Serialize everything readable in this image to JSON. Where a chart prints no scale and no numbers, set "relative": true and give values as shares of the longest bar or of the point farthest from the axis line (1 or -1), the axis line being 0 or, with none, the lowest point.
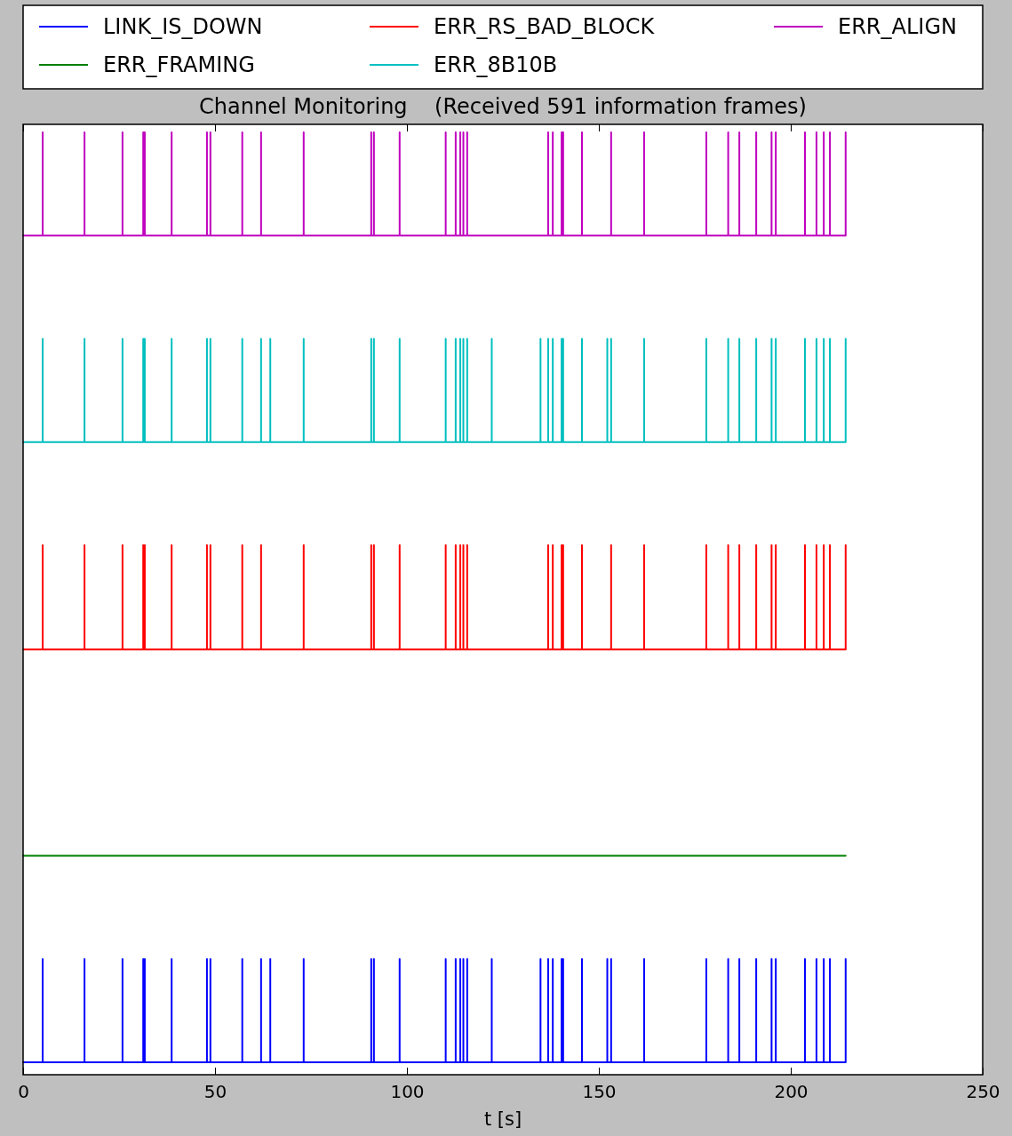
{
  "chart_data": {
    "type": "line",
    "title": "Channel Monitoring    (Received 591 information frames)",
    "xlabel": "t [s]",
    "relative": true,
    "tick_labels": "x",
    "legend": "top",
    "line_style": "solid",
    "xlim": [
      0,
      250
    ],
    "xticks": [
      0,
      50,
      100,
      150,
      200,
      250
    ],
    "series": [
      {
        "name": "LINK_IS_DOWN",
        "color": "#0000ff",
        "x": [
          0,
          5.1,
          5.1,
          5.1,
          16.0,
          16.0,
          16.0,
          25.9,
          25.9,
          25.9,
          31.3,
          31.3,
          31.3,
          31.7,
          31.7,
          31.7,
          38.7,
          38.7,
          38.7,
          47.9,
          47.9,
          47.9,
          48.8,
          48.8,
          48.8,
          57.1,
          57.1,
          57.1,
          62.0,
          62.0,
          62.0,
          64.4,
          64.4,
          64.4,
          73.1,
          73.1,
          73.1,
          90.7,
          90.7,
          90.7,
          91.4,
          91.4,
          91.4,
          98.1,
          98.1,
          98.1,
          110.1,
          110.1,
          110.1,
          112.7,
          112.7,
          112.7,
          113.9,
          113.9,
          113.9,
          114.7,
          114.7,
          114.7,
          115.7,
          115.7,
          115.7,
          122.1,
          122.1,
          122.1,
          134.8,
          134.8,
          134.8,
          136.8,
          136.8,
          136.8,
          138.0,
          138.0,
          138.0,
          140.3,
          140.3,
          140.3,
          140.7,
          140.7,
          140.7,
          145.6,
          145.6,
          145.6,
          152.2,
          152.2,
          152.2,
          153.2,
          153.2,
          153.2,
          161.8,
          161.8,
          161.8,
          178.0,
          178.0,
          178.0,
          183.7,
          183.7,
          183.7,
          186.6,
          186.6,
          186.6,
          191.0,
          191.0,
          191.0,
          195.0,
          195.0,
          195.0,
          196.1,
          196.1,
          196.1,
          203.7,
          203.7,
          203.7,
          206.7,
          206.7,
          206.7,
          208.6,
          208.6,
          208.6,
          210.2,
          210.2,
          210.2,
          214.3,
          214.3,
          214.3
        ],
        "values": [
          0,
          0,
          0.111,
          0,
          0,
          0.111,
          0,
          0,
          0.111,
          0,
          0,
          0.111,
          0,
          0,
          0.111,
          0,
          0,
          0.111,
          0,
          0,
          0.111,
          0,
          0,
          0.111,
          0,
          0,
          0.111,
          0,
          0,
          0.111,
          0,
          0,
          0.111,
          0,
          0,
          0.111,
          0,
          0,
          0.111,
          0,
          0,
          0.111,
          0,
          0,
          0.111,
          0,
          0,
          0.111,
          0,
          0,
          0.111,
          0,
          0,
          0.111,
          0,
          0,
          0.111,
          0,
          0,
          0.111,
          0,
          0,
          0.111,
          0,
          0,
          0.111,
          0,
          0,
          0.111,
          0,
          0,
          0.111,
          0,
          0,
          0.111,
          0,
          0,
          0.111,
          0,
          0,
          0.111,
          0,
          0,
          0.111,
          0,
          0,
          0.111,
          0,
          0,
          0.111,
          0,
          0,
          0.111,
          0,
          0,
          0.111,
          0,
          0,
          0.111,
          0,
          0,
          0.111,
          0,
          0,
          0.111,
          0,
          0,
          0.111,
          0,
          0,
          0.111,
          0,
          0,
          0.111,
          0,
          0,
          0.111,
          0,
          0,
          0.111,
          0,
          0,
          0.111,
          0
        ]
      },
      {
        "name": "ERR_FRAMING",
        "color": "#008000",
        "x": [
          0,
          214.3
        ],
        "values": [
          0.222,
          0.222
        ]
      },
      {
        "name": "ERR_RS_BAD_BLOCK",
        "color": "#ff0000",
        "x": [
          0,
          5.1,
          5.1,
          5.1,
          16.0,
          16.0,
          16.0,
          25.9,
          25.9,
          25.9,
          31.3,
          31.3,
          31.3,
          31.7,
          31.7,
          31.7,
          38.7,
          38.7,
          38.7,
          47.9,
          47.9,
          47.9,
          48.8,
          48.8,
          48.8,
          57.1,
          57.1,
          57.1,
          62.0,
          62.0,
          62.0,
          73.1,
          73.1,
          73.1,
          90.7,
          90.7,
          90.7,
          91.4,
          91.4,
          91.4,
          98.1,
          98.1,
          98.1,
          110.1,
          110.1,
          110.1,
          112.7,
          112.7,
          112.7,
          113.9,
          113.9,
          113.9,
          114.7,
          114.7,
          114.7,
          115.7,
          115.7,
          115.7,
          136.8,
          136.8,
          136.8,
          138.0,
          138.0,
          138.0,
          140.3,
          140.3,
          140.3,
          140.7,
          140.7,
          140.7,
          145.6,
          145.6,
          145.6,
          153.2,
          153.2,
          153.2,
          161.8,
          161.8,
          161.8,
          178.0,
          178.0,
          178.0,
          183.7,
          183.7,
          183.7,
          186.6,
          186.6,
          186.6,
          191.0,
          191.0,
          191.0,
          195.0,
          195.0,
          195.0,
          196.1,
          196.1,
          196.1,
          203.7,
          203.7,
          203.7,
          206.7,
          206.7,
          206.7,
          208.6,
          208.6,
          208.6,
          210.2,
          210.2,
          210.2,
          214.3,
          214.3,
          214.3
        ],
        "values": [
          0.444,
          0.444,
          0.556,
          0.444,
          0.444,
          0.556,
          0.444,
          0.444,
          0.556,
          0.444,
          0.444,
          0.556,
          0.444,
          0.444,
          0.556,
          0.444,
          0.444,
          0.556,
          0.444,
          0.444,
          0.556,
          0.444,
          0.444,
          0.556,
          0.444,
          0.444,
          0.556,
          0.444,
          0.444,
          0.556,
          0.444,
          0.444,
          0.556,
          0.444,
          0.444,
          0.556,
          0.444,
          0.444,
          0.556,
          0.444,
          0.444,
          0.556,
          0.444,
          0.444,
          0.556,
          0.444,
          0.444,
          0.556,
          0.444,
          0.444,
          0.556,
          0.444,
          0.444,
          0.556,
          0.444,
          0.444,
          0.556,
          0.444,
          0.444,
          0.556,
          0.444,
          0.444,
          0.556,
          0.444,
          0.444,
          0.556,
          0.444,
          0.444,
          0.556,
          0.444,
          0.444,
          0.556,
          0.444,
          0.444,
          0.556,
          0.444,
          0.444,
          0.556,
          0.444,
          0.444,
          0.556,
          0.444,
          0.444,
          0.556,
          0.444,
          0.444,
          0.556,
          0.444,
          0.444,
          0.556,
          0.444,
          0.444,
          0.556,
          0.444,
          0.444,
          0.556,
          0.444,
          0.444,
          0.556,
          0.444,
          0.444,
          0.556,
          0.444,
          0.444,
          0.556,
          0.444,
          0.444,
          0.556,
          0.444,
          0.444,
          0.556,
          0.444
        ]
      },
      {
        "name": "ERR_8B10B",
        "color": "#00bfbf",
        "x": [
          0,
          5.1,
          5.1,
          5.1,
          16.0,
          16.0,
          16.0,
          25.9,
          25.9,
          25.9,
          31.3,
          31.3,
          31.3,
          31.7,
          31.7,
          31.7,
          38.7,
          38.7,
          38.7,
          47.9,
          47.9,
          47.9,
          48.8,
          48.8,
          48.8,
          57.1,
          57.1,
          57.1,
          62.0,
          62.0,
          62.0,
          64.4,
          64.4,
          64.4,
          73.1,
          73.1,
          73.1,
          90.7,
          90.7,
          90.7,
          91.4,
          91.4,
          91.4,
          98.1,
          98.1,
          98.1,
          110.1,
          110.1,
          110.1,
          112.7,
          112.7,
          112.7,
          113.9,
          113.9,
          113.9,
          114.7,
          114.7,
          114.7,
          115.7,
          115.7,
          115.7,
          122.1,
          122.1,
          122.1,
          134.8,
          134.8,
          134.8,
          136.8,
          136.8,
          136.8,
          138.0,
          138.0,
          138.0,
          140.3,
          140.3,
          140.3,
          140.7,
          140.7,
          140.7,
          145.6,
          145.6,
          145.6,
          152.2,
          152.2,
          152.2,
          153.2,
          153.2,
          153.2,
          161.8,
          161.8,
          161.8,
          178.0,
          178.0,
          178.0,
          183.7,
          183.7,
          183.7,
          186.6,
          186.6,
          186.6,
          191.0,
          191.0,
          191.0,
          195.0,
          195.0,
          195.0,
          196.1,
          196.1,
          196.1,
          203.7,
          203.7,
          203.7,
          206.7,
          206.7,
          206.7,
          208.6,
          208.6,
          208.6,
          210.2,
          210.2,
          210.2,
          214.3,
          214.3,
          214.3
        ],
        "values": [
          0.667,
          0.667,
          0.778,
          0.667,
          0.667,
          0.778,
          0.667,
          0.667,
          0.778,
          0.667,
          0.667,
          0.778,
          0.667,
          0.667,
          0.778,
          0.667,
          0.667,
          0.778,
          0.667,
          0.667,
          0.778,
          0.667,
          0.667,
          0.778,
          0.667,
          0.667,
          0.778,
          0.667,
          0.667,
          0.778,
          0.667,
          0.667,
          0.778,
          0.667,
          0.667,
          0.778,
          0.667,
          0.667,
          0.778,
          0.667,
          0.667,
          0.778,
          0.667,
          0.667,
          0.778,
          0.667,
          0.667,
          0.778,
          0.667,
          0.667,
          0.778,
          0.667,
          0.667,
          0.778,
          0.667,
          0.667,
          0.778,
          0.667,
          0.667,
          0.778,
          0.667,
          0.667,
          0.778,
          0.667,
          0.667,
          0.778,
          0.667,
          0.667,
          0.778,
          0.667,
          0.667,
          0.778,
          0.667,
          0.667,
          0.778,
          0.667,
          0.667,
          0.778,
          0.667,
          0.667,
          0.778,
          0.667,
          0.667,
          0.778,
          0.667,
          0.667,
          0.778,
          0.667,
          0.667,
          0.778,
          0.667,
          0.667,
          0.778,
          0.667,
          0.667,
          0.778,
          0.667,
          0.667,
          0.778,
          0.667,
          0.667,
          0.778,
          0.667,
          0.667,
          0.778,
          0.667,
          0.667,
          0.778,
          0.667,
          0.667,
          0.778,
          0.667,
          0.667,
          0.778,
          0.667,
          0.667,
          0.778,
          0.667,
          0.667,
          0.778,
          0.667,
          0.667,
          0.778,
          0.667
        ]
      },
      {
        "name": "ERR_ALIGN",
        "color": "#bf00bf",
        "x": [
          0,
          5.1,
          5.1,
          5.1,
          16.0,
          16.0,
          16.0,
          25.9,
          25.9,
          25.9,
          31.3,
          31.3,
          31.3,
          31.7,
          31.7,
          31.7,
          38.7,
          38.7,
          38.7,
          47.9,
          47.9,
          47.9,
          48.8,
          48.8,
          48.8,
          57.1,
          57.1,
          57.1,
          62.0,
          62.0,
          62.0,
          73.1,
          73.1,
          73.1,
          90.7,
          90.7,
          90.7,
          91.4,
          91.4,
          91.4,
          98.1,
          98.1,
          98.1,
          110.1,
          110.1,
          110.1,
          112.7,
          112.7,
          112.7,
          113.9,
          113.9,
          113.9,
          114.7,
          114.7,
          114.7,
          115.7,
          115.7,
          115.7,
          136.8,
          136.8,
          136.8,
          138.0,
          138.0,
          138.0,
          140.3,
          140.3,
          140.3,
          140.7,
          140.7,
          140.7,
          145.6,
          145.6,
          145.6,
          153.2,
          153.2,
          153.2,
          161.8,
          161.8,
          161.8,
          178.0,
          178.0,
          178.0,
          183.7,
          183.7,
          183.7,
          186.6,
          186.6,
          186.6,
          191.0,
          191.0,
          191.0,
          195.0,
          195.0,
          195.0,
          196.1,
          196.1,
          196.1,
          203.7,
          203.7,
          203.7,
          206.7,
          206.7,
          206.7,
          208.6,
          208.6,
          208.6,
          210.2,
          210.2,
          210.2,
          214.3,
          214.3,
          214.3
        ],
        "values": [
          0.889,
          0.889,
          1,
          0.889,
          0.889,
          1,
          0.889,
          0.889,
          1,
          0.889,
          0.889,
          1,
          0.889,
          0.889,
          1,
          0.889,
          0.889,
          1,
          0.889,
          0.889,
          1,
          0.889,
          0.889,
          1,
          0.889,
          0.889,
          1,
          0.889,
          0.889,
          1,
          0.889,
          0.889,
          1,
          0.889,
          0.889,
          1,
          0.889,
          0.889,
          1,
          0.889,
          0.889,
          1,
          0.889,
          0.889,
          1,
          0.889,
          0.889,
          1,
          0.889,
          0.889,
          1,
          0.889,
          0.889,
          1,
          0.889,
          0.889,
          1,
          0.889,
          0.889,
          1,
          0.889,
          0.889,
          1,
          0.889,
          0.889,
          1,
          0.889,
          0.889,
          1,
          0.889,
          0.889,
          1,
          0.889,
          0.889,
          1,
          0.889,
          0.889,
          1,
          0.889,
          0.889,
          1,
          0.889,
          0.889,
          1,
          0.889,
          0.889,
          1,
          0.889,
          0.889,
          1,
          0.889,
          0.889,
          1,
          0.889,
          0.889,
          1,
          0.889,
          0.889,
          1,
          0.889,
          0.889,
          1,
          0.889,
          0.889,
          1,
          0.889,
          0.889,
          1,
          0.889,
          0.889,
          1,
          0.889
        ]
      }
    ]
  }
}
